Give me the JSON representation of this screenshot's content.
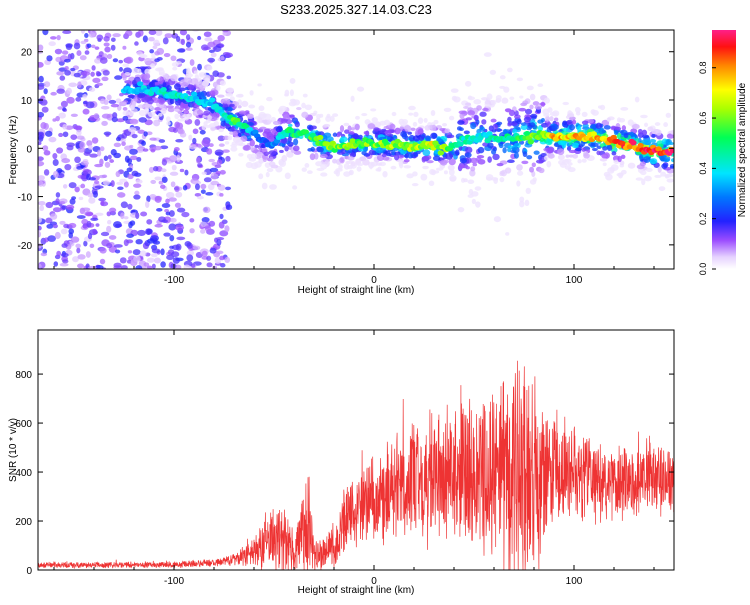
{
  "title": "S233.2025.327.14.03.C23",
  "colors": {
    "snr_line": "#ee3333",
    "axis": "#000000",
    "background": "#ffffff"
  },
  "chart_data": [
    {
      "type": "heatmap",
      "xlabel": "Height of straight line (km)",
      "ylabel": "Frequency (Hz)",
      "xlim": [
        -168,
        150
      ],
      "ylim": [
        -25,
        24.5
      ],
      "xticks": [
        -100,
        0,
        100
      ],
      "yticks": [
        -20,
        -10,
        0,
        10,
        20
      ],
      "colorbar": {
        "label": "Normalized spectral amplitude",
        "range": [
          0,
          0.95
        ],
        "ticks": [
          "0.0",
          "0.2",
          "0.4",
          "0.6",
          "0.8"
        ],
        "tick_values": [
          0.0,
          0.2,
          0.4,
          0.6,
          0.8
        ],
        "colormap": "rainbow (white-violet-blue-cyan-green-yellow-red-magenta)"
      },
      "ridge": {
        "x": [
          -125,
          -110,
          -100,
          -90,
          -80,
          -75,
          -70,
          -65,
          -60,
          -55,
          -50,
          -45,
          -40,
          -35,
          -30,
          -25,
          -20,
          -10,
          0,
          10,
          20,
          30,
          40,
          45,
          50,
          55,
          60,
          70,
          80,
          90,
          100,
          110,
          120,
          130,
          140,
          150
        ],
        "frequency": [
          12,
          12,
          11,
          10.5,
          9,
          7,
          6,
          4.5,
          3,
          1.5,
          0.5,
          3,
          3.5,
          3,
          2,
          1,
          0.5,
          1,
          1,
          1,
          0.5,
          0.5,
          0.5,
          1.5,
          2,
          2.5,
          2,
          2,
          2.5,
          2.5,
          2.5,
          2.5,
          1.5,
          0.5,
          -0.5,
          -1
        ],
        "amplitude": [
          0.35,
          0.4,
          0.45,
          0.4,
          0.35,
          0.45,
          0.55,
          0.5,
          0.3,
          0.25,
          0.3,
          0.45,
          0.55,
          0.5,
          0.55,
          0.6,
          0.6,
          0.6,
          0.6,
          0.65,
          0.65,
          0.7,
          0.55,
          0.45,
          0.45,
          0.4,
          0.45,
          0.5,
          0.6,
          0.75,
          0.78,
          0.8,
          0.85,
          0.88,
          0.9,
          0.9
        ]
      }
    },
    {
      "type": "line",
      "xlabel": "Height of straight line (km)",
      "ylabel": "SNR (10 * v/v)",
      "xlim": [
        -168,
        150
      ],
      "ylim": [
        0,
        980
      ],
      "xticks": [
        -100,
        0,
        100
      ],
      "yticks": [
        0,
        200,
        400,
        600,
        800
      ],
      "series": [
        {
          "name": "SNR",
          "envelope": {
            "x": [
              -168,
              -150,
              -100,
              -80,
              -70,
              -60,
              -55,
              -50,
              -45,
              -40,
              -35,
              -33,
              -30,
              -25,
              -20,
              -15,
              -10,
              -5,
              0,
              10,
              20,
              30,
              40,
              50,
              60,
              65,
              70,
              75,
              80,
              85,
              90,
              100,
              110,
              120,
              130,
              140,
              150
            ],
            "mean": [
              20,
              20,
              22,
              30,
              45,
              70,
              110,
              150,
              120,
              70,
              160,
              180,
              60,
              70,
              110,
              180,
              230,
              260,
              300,
              340,
              360,
              380,
              400,
              410,
              400,
              380,
              370,
              380,
              400,
              390,
              400,
              390,
              370,
              370,
              370,
              370,
              370
            ],
            "spread": [
              12,
              12,
              12,
              15,
              25,
              60,
              110,
              140,
              130,
              80,
              190,
              290,
              80,
              60,
              110,
              140,
              150,
              170,
              180,
              200,
              220,
              250,
              280,
              300,
              360,
              400,
              420,
              440,
              420,
              300,
              220,
              190,
              170,
              160,
              150,
              140,
              140
            ]
          }
        }
      ]
    }
  ]
}
